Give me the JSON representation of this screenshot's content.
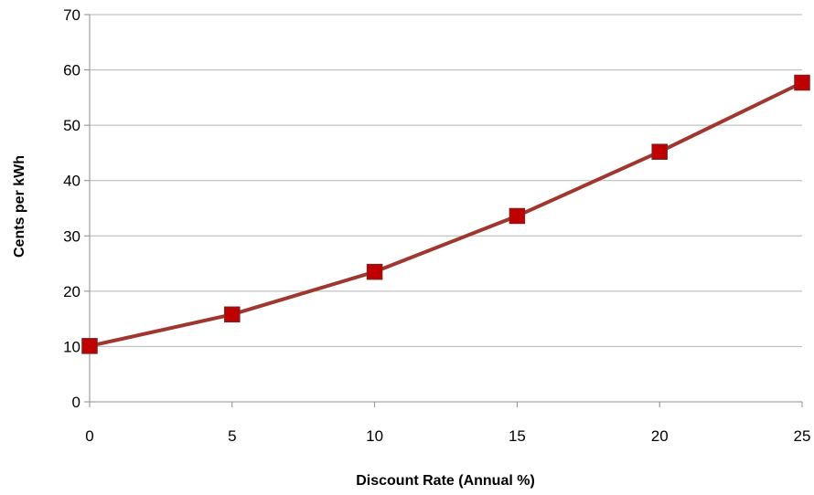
{
  "chart_data": {
    "type": "line",
    "title": "",
    "xlabel": "Discount Rate (Annual %)",
    "ylabel": "Cents per kWh",
    "xlim": [
      0,
      25
    ],
    "ylim": [
      0,
      70
    ],
    "x_ticks": [
      0,
      5,
      10,
      15,
      20,
      25
    ],
    "y_ticks": [
      0,
      10,
      20,
      30,
      40,
      50,
      60,
      70
    ],
    "grid": "horizontal",
    "legend": "none",
    "series": [
      {
        "x": [
          0,
          5,
          10,
          15,
          20,
          25
        ],
        "values": [
          10.1,
          15.8,
          23.5,
          33.6,
          45.2,
          57.7
        ],
        "line_color": "#a0372f",
        "marker": "square",
        "marker_color": "#c00000",
        "marker_edge_color": "#8b1a1a"
      }
    ]
  }
}
